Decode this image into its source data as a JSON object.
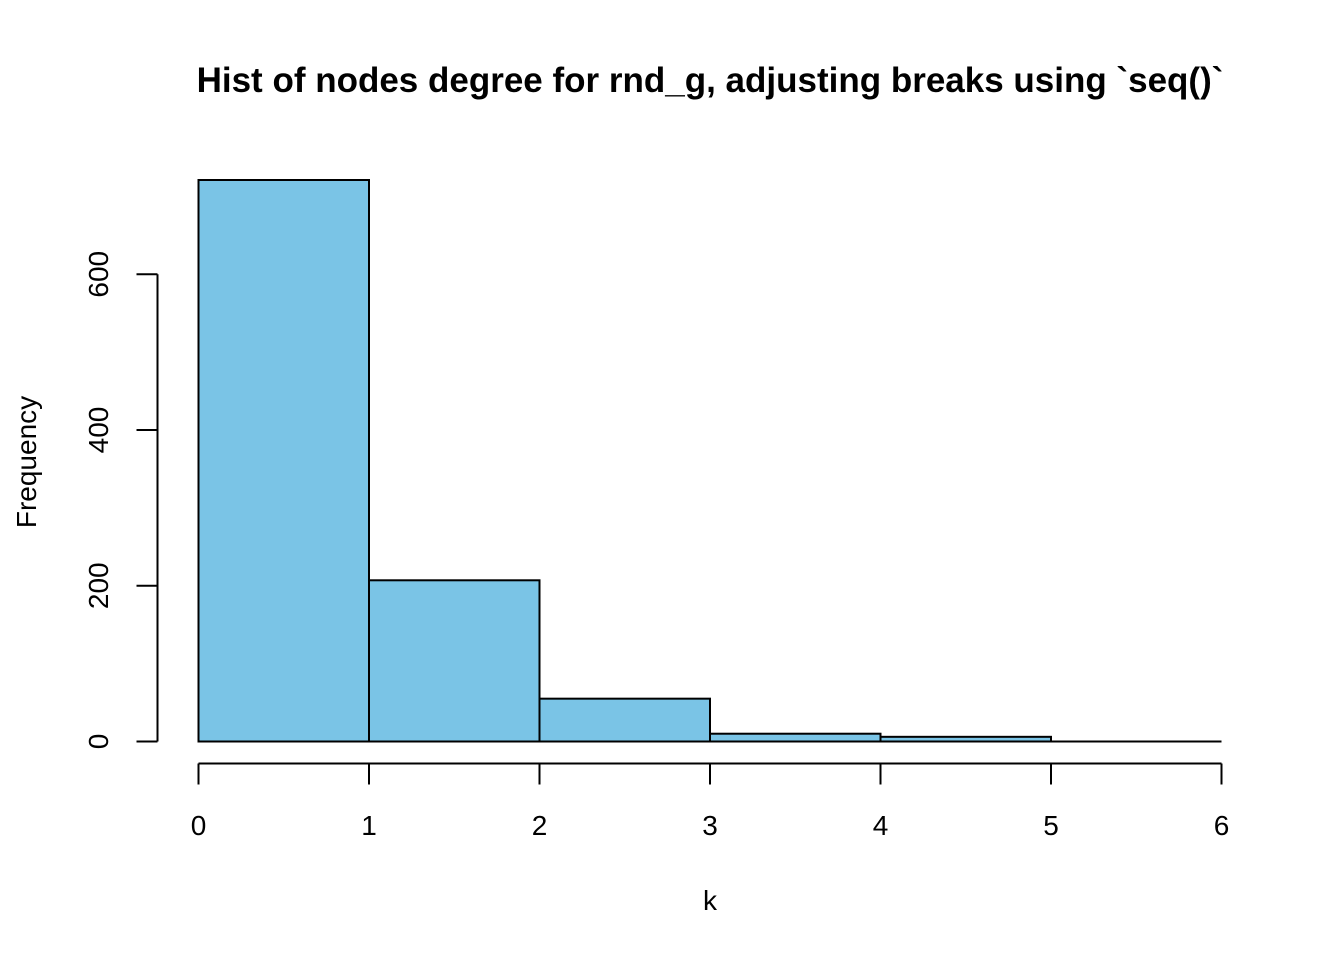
{
  "chart_data": {
    "type": "bar",
    "subtype": "histogram",
    "title": "Hist of nodes degree for rnd_g, adjusting breaks using `seq()`",
    "xlabel": "k",
    "ylabel": "Frequency",
    "breaks": [
      0,
      1,
      2,
      3,
      4,
      5,
      6
    ],
    "values": [
      721,
      207,
      55,
      10,
      6,
      0
    ],
    "xlim": [
      0,
      6
    ],
    "ylim": [
      0,
      721
    ],
    "x_ticks": [
      "0",
      "1",
      "2",
      "3",
      "4",
      "5",
      "6"
    ],
    "y_ticks": [
      "0",
      "200",
      "400",
      "600"
    ],
    "bar_color": "#7AC4E6",
    "edge_color": "#000000",
    "grid": false,
    "legend": "none"
  }
}
